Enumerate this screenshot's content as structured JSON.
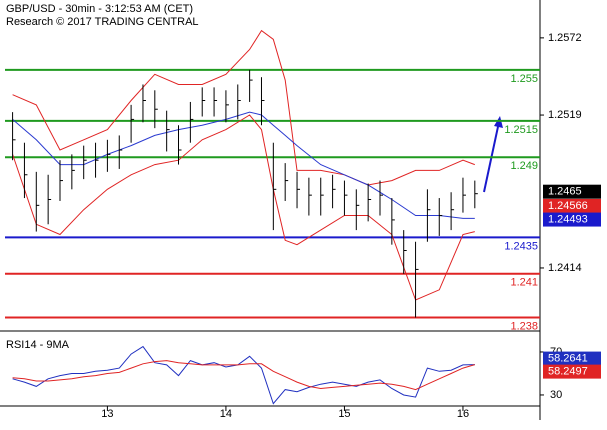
{
  "chart_data": [
    {
      "type": "ohlc",
      "title": "GBP/USD - 30min - 3:12:53 AM (CET)",
      "subtitle": "Research © 2017 TRADING CENTRAL",
      "x": [
        12.2,
        12.3,
        12.4,
        12.5,
        12.6,
        12.7,
        12.8,
        12.9,
        13.0,
        13.1,
        13.2,
        13.3,
        13.4,
        13.5,
        13.6,
        13.7,
        13.8,
        13.9,
        14.0,
        14.1,
        14.2,
        14.3,
        14.4,
        14.5,
        14.6,
        14.7,
        14.8,
        14.9,
        15.0,
        15.1,
        15.2,
        15.3,
        15.4,
        15.5,
        15.6,
        15.7,
        15.8,
        15.9,
        16.0,
        16.1
      ],
      "high": [
        1.2521,
        1.25,
        1.248,
        1.2478,
        1.2488,
        1.2492,
        1.2498,
        1.25,
        1.2502,
        1.2505,
        1.2526,
        1.254,
        1.2536,
        1.2522,
        1.2512,
        1.2528,
        1.2538,
        1.2538,
        1.2536,
        1.254,
        1.255,
        1.2545,
        1.25,
        1.2486,
        1.248,
        1.2476,
        1.2476,
        1.2478,
        1.2474,
        1.2468,
        1.2472,
        1.2474,
        1.2462,
        1.244,
        1.2432,
        1.2468,
        1.2462,
        1.2466,
        1.2476,
        1.2474
      ],
      "low": [
        1.2488,
        1.2462,
        1.2439,
        1.2444,
        1.246,
        1.2468,
        1.2475,
        1.2476,
        1.248,
        1.2482,
        1.25,
        1.2514,
        1.251,
        1.2494,
        1.2485,
        1.25,
        1.2518,
        1.2518,
        1.2514,
        1.2516,
        1.2528,
        1.2512,
        1.244,
        1.246,
        1.2455,
        1.245,
        1.245,
        1.2455,
        1.245,
        1.244,
        1.2446,
        1.245,
        1.243,
        1.241,
        1.238,
        1.2432,
        1.2436,
        1.244,
        1.2452,
        1.2455
      ],
      "close": [
        1.2502,
        1.2478,
        1.2457,
        1.2461,
        1.2474,
        1.2481,
        1.2488,
        1.2488,
        1.2492,
        1.2495,
        1.2516,
        1.2529,
        1.2523,
        1.2509,
        1.2495,
        1.2516,
        1.2529,
        1.2529,
        1.2526,
        1.2529,
        1.2543,
        1.2529,
        1.2468,
        1.2474,
        1.2468,
        1.2464,
        1.2464,
        1.2468,
        1.2464,
        1.2457,
        1.2461,
        1.2464,
        1.2447,
        1.2426,
        1.2413,
        1.2454,
        1.245,
        1.2454,
        1.2464,
        1.2465
      ],
      "bar_color": "#000000",
      "bands": {
        "x": [
          12.2,
          12.4,
          12.6,
          12.8,
          13.0,
          13.2,
          13.4,
          13.6,
          13.8,
          14.0,
          14.2,
          14.3,
          14.4,
          14.5,
          14.6,
          14.8,
          15.0,
          15.2,
          15.4,
          15.6,
          15.8,
          16.0,
          16.1
        ],
        "upper": [
          1.2533,
          1.2526,
          1.2495,
          1.2502,
          1.2509,
          1.2529,
          1.2547,
          1.254,
          1.254,
          1.2547,
          1.2564,
          1.2577,
          1.2571,
          1.2543,
          1.2481,
          1.2481,
          1.2478,
          1.2471,
          1.2474,
          1.2481,
          1.2481,
          1.2488,
          1.2485
        ],
        "lower": [
          1.2492,
          1.2444,
          1.2437,
          1.2454,
          1.2468,
          1.2478,
          1.2485,
          1.2488,
          1.2502,
          1.2509,
          1.2519,
          1.2509,
          1.2468,
          1.2433,
          1.243,
          1.244,
          1.245,
          1.245,
          1.2437,
          1.2392,
          1.2399,
          1.2437,
          1.2439
        ],
        "ma": [
          1.2516,
          1.2502,
          1.2485,
          1.2485,
          1.2492,
          1.2498,
          1.2505,
          1.2509,
          1.2512,
          1.2516,
          1.2521,
          1.2519,
          1.2512,
          1.2505,
          1.2498,
          1.2485,
          1.2478,
          1.2471,
          1.2461,
          1.245,
          1.245,
          1.2448,
          1.2448
        ],
        "band_color": "#e02424",
        "ma_color": "#2a3ad0"
      },
      "levels": [
        {
          "value": 1.255,
          "color": "#1f9a1f"
        },
        {
          "value": 1.2515,
          "color": "#1f9a1f"
        },
        {
          "value": 1.249,
          "color": "#1f9a1f"
        },
        {
          "value": 1.2435,
          "color": "#1a1acc"
        },
        {
          "value": 1.241,
          "color": "#e02424"
        },
        {
          "value": 1.238,
          "color": "#e02424"
        }
      ],
      "markers": [
        {
          "value": 1.24566,
          "color": "#e02424"
        },
        {
          "value": 1.24493,
          "color": "#1a1acc"
        }
      ],
      "last_color": "#000000",
      "xlim": [
        12.136,
        16.65
      ],
      "xticks": [
        13,
        14,
        15,
        16
      ],
      "ylim": [
        1.23714,
        1.2598
      ],
      "yticks": [
        1.2572,
        1.2519,
        1.2414
      ]
    },
    {
      "type": "line",
      "title": "RSI14 - 9MA",
      "x": [
        12.2,
        12.3,
        12.4,
        12.5,
        12.6,
        12.7,
        12.8,
        12.9,
        13.0,
        13.1,
        13.2,
        13.3,
        13.4,
        13.5,
        13.6,
        13.7,
        13.8,
        13.9,
        14.0,
        14.1,
        14.2,
        14.3,
        14.4,
        14.5,
        14.6,
        14.7,
        14.8,
        14.9,
        15.0,
        15.1,
        15.2,
        15.3,
        15.4,
        15.5,
        15.6,
        15.7,
        15.8,
        15.9,
        16.0,
        16.1
      ],
      "series": [
        {
          "color": "#2030c0",
          "values": [
            45,
            42,
            38,
            45,
            48,
            50,
            50,
            52,
            53,
            55,
            68,
            75,
            60,
            58,
            48,
            62,
            58,
            60,
            56,
            58,
            66,
            55,
            22,
            35,
            33,
            37,
            40,
            42,
            40,
            38,
            42,
            44,
            36,
            30,
            28,
            55,
            52,
            53,
            58,
            58.2641
          ]
        },
        {
          "color": "#e02424",
          "values": [
            46,
            45,
            43,
            43,
            44,
            45,
            47,
            48,
            50,
            51,
            55,
            59,
            61,
            62,
            60,
            59,
            58,
            58,
            58,
            58,
            59,
            59,
            52,
            47,
            42,
            38,
            36,
            37,
            38,
            39,
            40,
            41,
            40,
            38,
            35,
            40,
            45,
            50,
            55,
            58.2497
          ]
        }
      ],
      "xlim": [
        12.136,
        16.65
      ],
      "ylim": [
        16,
        85.8
      ],
      "yticks": [
        70,
        30
      ]
    }
  ]
}
